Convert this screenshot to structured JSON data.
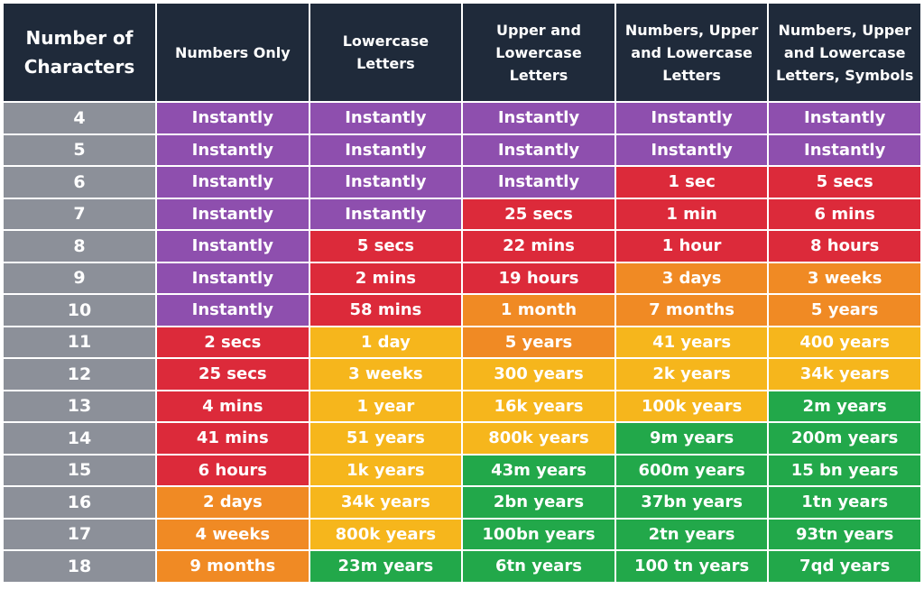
{
  "table": {
    "headers": [
      "Number of Characters",
      "Numbers Only",
      "Lowercase Letters",
      "Upper and Lowercase Letters",
      "Numbers, Upper and Lowercase Letters",
      "Numbers, Upper and Lowercase Letters, Symbols"
    ],
    "rows": [
      {
        "length": "4",
        "cells": [
          "Instantly",
          "Instantly",
          "Instantly",
          "Instantly",
          "Instantly"
        ],
        "colors": [
          "#8e4fae",
          "#8e4fae",
          "#8e4fae",
          "#8e4fae",
          "#8e4fae"
        ]
      },
      {
        "length": "5",
        "cells": [
          "Instantly",
          "Instantly",
          "Instantly",
          "Instantly",
          "Instantly"
        ],
        "colors": [
          "#8e4fae",
          "#8e4fae",
          "#8e4fae",
          "#8e4fae",
          "#8e4fae"
        ]
      },
      {
        "length": "6",
        "cells": [
          "Instantly",
          "Instantly",
          "Instantly",
          "1 sec",
          "5 secs"
        ],
        "colors": [
          "#8e4fae",
          "#8e4fae",
          "#8e4fae",
          "#dc2a3a",
          "#dc2a3a"
        ]
      },
      {
        "length": "7",
        "cells": [
          "Instantly",
          "Instantly",
          "25 secs",
          "1 min",
          "6 mins"
        ],
        "colors": [
          "#8e4fae",
          "#8e4fae",
          "#dc2a3a",
          "#dc2a3a",
          "#dc2a3a"
        ]
      },
      {
        "length": "8",
        "cells": [
          "Instantly",
          "5 secs",
          "22 mins",
          "1 hour",
          "8 hours"
        ],
        "colors": [
          "#8e4fae",
          "#dc2a3a",
          "#dc2a3a",
          "#dc2a3a",
          "#dc2a3a"
        ]
      },
      {
        "length": "9",
        "cells": [
          "Instantly",
          "2 mins",
          "19 hours",
          "3 days",
          "3 weeks"
        ],
        "colors": [
          "#8e4fae",
          "#dc2a3a",
          "#dc2a3a",
          "#f08a24",
          "#f08a24"
        ]
      },
      {
        "length": "10",
        "cells": [
          "Instantly",
          "58 mins",
          "1 month",
          "7 months",
          "5 years"
        ],
        "colors": [
          "#8e4fae",
          "#dc2a3a",
          "#f08a24",
          "#f08a24",
          "#f08a24"
        ]
      },
      {
        "length": "11",
        "cells": [
          "2 secs",
          "1 day",
          "5 years",
          "41 years",
          "400 years"
        ],
        "colors": [
          "#dc2a3a",
          "#f6b61c",
          "#f08a24",
          "#f6b61c",
          "#f6b61c"
        ]
      },
      {
        "length": "12",
        "cells": [
          "25 secs",
          "3 weeks",
          "300 years",
          "2k years",
          "34k years"
        ],
        "colors": [
          "#dc2a3a",
          "#f6b61c",
          "#f6b61c",
          "#f6b61c",
          "#f6b61c"
        ]
      },
      {
        "length": "13",
        "cells": [
          "4 mins",
          "1 year",
          "16k years",
          "100k years",
          "2m years"
        ],
        "colors": [
          "#dc2a3a",
          "#f6b61c",
          "#f6b61c",
          "#f6b61c",
          "#22a84a"
        ]
      },
      {
        "length": "14",
        "cells": [
          "41 mins",
          "51 years",
          "800k years",
          "9m years",
          "200m years"
        ],
        "colors": [
          "#dc2a3a",
          "#f6b61c",
          "#f6b61c",
          "#22a84a",
          "#22a84a"
        ]
      },
      {
        "length": "15",
        "cells": [
          "6 hours",
          "1k years",
          "43m years",
          "600m years",
          "15 bn years"
        ],
        "colors": [
          "#dc2a3a",
          "#f6b61c",
          "#22a84a",
          "#22a84a",
          "#22a84a"
        ]
      },
      {
        "length": "16",
        "cells": [
          "2 days",
          "34k years",
          "2bn years",
          "37bn years",
          "1tn years"
        ],
        "colors": [
          "#f08a24",
          "#f6b61c",
          "#22a84a",
          "#22a84a",
          "#22a84a"
        ]
      },
      {
        "length": "17",
        "cells": [
          "4 weeks",
          "800k years",
          "100bn years",
          "2tn years",
          "93tn years"
        ],
        "colors": [
          "#f08a24",
          "#f6b61c",
          "#22a84a",
          "#22a84a",
          "#22a84a"
        ]
      },
      {
        "length": "18",
        "cells": [
          "9 months",
          "23m years",
          "6tn years",
          "100 tn years",
          "7qd years"
        ],
        "colors": [
          "#f08a24",
          "#22a84a",
          "#22a84a",
          "#22a84a",
          "#22a84a"
        ]
      }
    ]
  }
}
